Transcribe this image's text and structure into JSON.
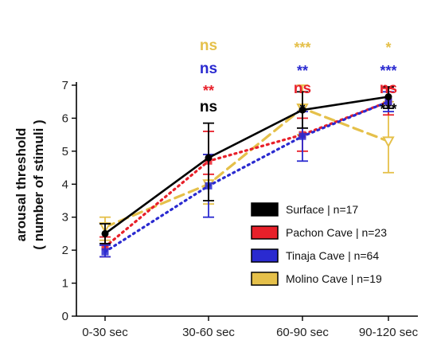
{
  "chart_data": {
    "type": "line",
    "title": "",
    "xlabel": "",
    "ylabel": "arousal threshold",
    "ylabel_line2": "( number of stimuli )",
    "categories": [
      "0-30 sec",
      "30-60 sec",
      "60-90 sec",
      "90-120 sec"
    ],
    "ylim": [
      0,
      7
    ],
    "yticks": [
      0,
      1,
      2,
      3,
      4,
      5,
      6,
      7
    ],
    "grid": false,
    "legend_position": "lower-right",
    "series": [
      {
        "name": "Surface | n=17",
        "color": "#000000",
        "line_style": "solid",
        "marker": "circle",
        "values": [
          2.5,
          4.8,
          6.25,
          6.65
        ],
        "err_low": [
          2.2,
          3.5,
          5.7,
          6.3
        ],
        "err_high": [
          2.8,
          5.85,
          6.8,
          6.95
        ]
      },
      {
        "name": "Pachon Cave | n=23",
        "color": "#e8202a",
        "line_style": "dotted",
        "marker": "square",
        "values": [
          2.1,
          4.7,
          5.5,
          6.5
        ],
        "err_low": [
          1.8,
          4.3,
          5.0,
          6.1
        ],
        "err_high": [
          2.4,
          5.6,
          6.0,
          6.9
        ]
      },
      {
        "name": "Tinaja Cave | n=64",
        "color": "#2a2ad0",
        "line_style": "dotted",
        "marker": "square",
        "values": [
          1.95,
          3.95,
          5.45,
          6.5
        ],
        "err_low": [
          1.8,
          3.0,
          4.7,
          6.2
        ],
        "err_high": [
          2.15,
          4.9,
          6.2,
          6.8
        ]
      },
      {
        "name": "Molino Cave | n=19",
        "color": "#e5c04a",
        "line_style": "dashed",
        "marker": "triangle-down",
        "values": [
          2.7,
          4.0,
          6.3,
          5.3
        ],
        "err_low": [
          2.3,
          3.4,
          5.5,
          4.35
        ],
        "err_high": [
          3.0,
          4.9,
          7.0,
          6.5
        ]
      }
    ],
    "significance": [
      {
        "category": "30-60 sec",
        "labels": [
          {
            "text": "ns",
            "color": "#e5c04a"
          },
          {
            "text": "ns",
            "color": "#2a2ad0"
          },
          {
            "text": "**",
            "color": "#e8202a"
          },
          {
            "text": "ns",
            "color": "#000000"
          }
        ]
      },
      {
        "category": "60-90 sec",
        "labels": [
          {
            "text": "***",
            "color": "#e5c04a"
          },
          {
            "text": "**",
            "color": "#2a2ad0"
          },
          {
            "text": "ns",
            "color": "#e8202a"
          },
          {
            "text": "*",
            "color": "#000000"
          }
        ]
      },
      {
        "category": "90-120 sec",
        "labels": [
          {
            "text": "*",
            "color": "#e5c04a"
          },
          {
            "text": "***",
            "color": "#2a2ad0"
          },
          {
            "text": "ns",
            "color": "#e8202a"
          },
          {
            "text": "***",
            "color": "#000000"
          }
        ]
      }
    ]
  }
}
